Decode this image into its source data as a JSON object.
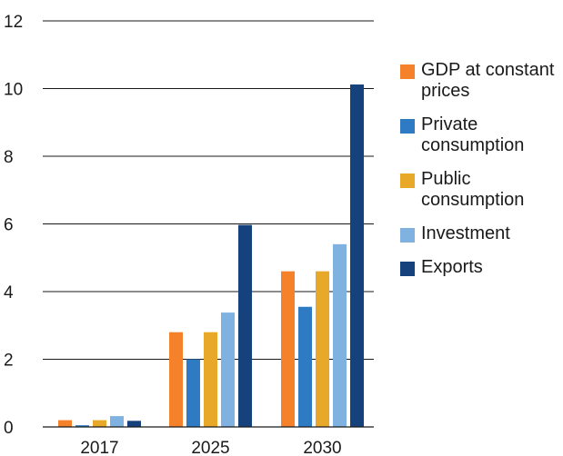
{
  "chart_data": {
    "type": "bar",
    "categories": [
      "2017",
      "2025",
      "2030"
    ],
    "ylim": [
      0,
      12
    ],
    "yticks": [
      0,
      2,
      4,
      6,
      8,
      10,
      12
    ],
    "grid": "horizontal",
    "legend_position": "right",
    "series": [
      {
        "name": "GDP at constant prices",
        "color": "#f5822a",
        "values": [
          0.2,
          2.8,
          4.6
        ]
      },
      {
        "name": "Private consumption",
        "color": "#2e7bc4",
        "values": [
          0.05,
          2.0,
          3.55
        ]
      },
      {
        "name": "Public consumption",
        "color": "#e8a92a",
        "values": [
          0.2,
          2.8,
          4.6
        ]
      },
      {
        "name": "Investment",
        "color": "#7fb2e0",
        "values": [
          0.32,
          3.38,
          5.4
        ]
      },
      {
        "name": "Exports",
        "color": "#15427d",
        "values": [
          0.18,
          5.97,
          10.12
        ]
      }
    ]
  },
  "legend": {
    "items": [
      {
        "label": "GDP at constant prices"
      },
      {
        "label": "Private consumption"
      },
      {
        "label": "Public consumption"
      },
      {
        "label": "Investment"
      },
      {
        "label": "Exports"
      }
    ]
  }
}
